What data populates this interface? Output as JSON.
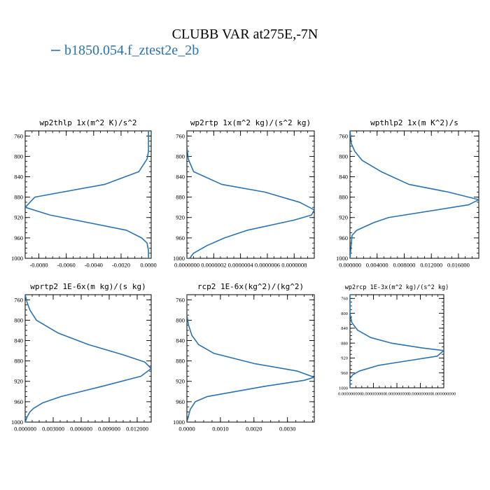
{
  "figure": {
    "title": "CLUBB VAR at275E,-7N",
    "legend": {
      "label": "b1850.054.f_ztest2e_2b",
      "color": "#2a73b2"
    }
  },
  "chart_data": [
    {
      "type": "line",
      "title": "wp2thlp  1x(m^2 K)/s^2",
      "xlim": [
        -0.009,
        0.0002
      ],
      "ylim": [
        1000,
        750
      ],
      "x_ticks": [
        "-0.0080",
        "-0.0060",
        "-0.0040",
        "-0.0020",
        "0.0000"
      ],
      "x_tick_values": [
        -0.008,
        -0.006,
        -0.004,
        -0.002,
        0.0
      ],
      "y_ticks": [
        "760",
        "800",
        "840",
        "880",
        "920",
        "960",
        "1000"
      ],
      "y_tick_values": [
        760,
        800,
        840,
        880,
        920,
        960,
        1000
      ],
      "series": [
        {
          "color": "#2a73b2",
          "x": [
            0.0,
            0.0,
            0.0,
            -0.0001,
            -0.0007,
            -0.0032,
            -0.0083,
            -0.009,
            -0.0072,
            -0.0016,
            -0.0005,
            -0.0001,
            0.0,
            0.0
          ],
          "y": [
            750,
            780,
            790,
            805,
            830,
            855,
            880,
            900,
            915,
            945,
            960,
            970,
            985,
            1000
          ]
        }
      ]
    },
    {
      "type": "line",
      "title": "wp2rtp  1x(m^2 kg)/(s^2 kg)",
      "xlim": [
        0,
        9.5e-07
      ],
      "ylim": [
        1000,
        750
      ],
      "x_ticks": [
        "0.0000000",
        "0.0000002",
        "0.0000004",
        "0.0000006",
        "0.0000008"
      ],
      "x_tick_values": [
        0,
        2e-07,
        4e-07,
        6e-07,
        8e-07
      ],
      "y_ticks": [
        "760",
        "800",
        "840",
        "880",
        "920",
        "960",
        "1000"
      ],
      "y_tick_values": [
        760,
        800,
        840,
        880,
        920,
        960,
        1000
      ],
      "series": [
        {
          "color": "#2a73b2",
          "x": [
            0.0,
            0.0,
            1e-08,
            5e-08,
            2.6e-07,
            5.8e-07,
            8.4e-07,
            9.5e-07,
            9.3e-07,
            8e-07,
            4.5e-07,
            2.8e-07,
            1.5e-07,
            5e-08,
            2e-08,
            0.0
          ],
          "y": [
            750,
            780,
            805,
            830,
            855,
            870,
            890,
            905,
            915,
            925,
            945,
            960,
            975,
            990,
            1000,
            1000
          ]
        }
      ]
    },
    {
      "type": "line",
      "title": "wpthlp2  1x(m K^2)/s",
      "xlim": [
        0,
        0.019
      ],
      "ylim": [
        1000,
        750
      ],
      "x_ticks": [
        "0.000000",
        "0.004000",
        "0.008000",
        "0.012000",
        "0.016000"
      ],
      "x_tick_values": [
        0,
        0.004,
        0.008,
        0.012,
        0.016
      ],
      "y_ticks": [
        "760",
        "800",
        "840",
        "880",
        "920",
        "960",
        "1000"
      ],
      "y_tick_values": [
        760,
        800,
        840,
        880,
        920,
        960,
        1000
      ],
      "series": [
        {
          "color": "#2a73b2",
          "x": [
            0.0,
            0.0002,
            0.0007,
            0.0018,
            0.0046,
            0.0087,
            0.0145,
            0.019,
            0.0175,
            0.0057,
            0.0035,
            0.001,
            0.0003,
            0.0
          ],
          "y": [
            750,
            775,
            790,
            808,
            830,
            855,
            870,
            885,
            895,
            920,
            930,
            945,
            955,
            1000
          ]
        }
      ]
    },
    {
      "type": "line",
      "title": "wprtp2  1E-6x(m kg)/(s kg)",
      "xlim": [
        0,
        0.0135
      ],
      "ylim": [
        1000,
        750
      ],
      "x_ticks": [
        "0.000000",
        "0.003000",
        "0.006000",
        "0.009000",
        "0.012000"
      ],
      "x_tick_values": [
        0,
        0.003,
        0.006,
        0.009,
        0.012
      ],
      "y_ticks": [
        "760",
        "800",
        "840",
        "880",
        "920",
        "960",
        "1000"
      ],
      "y_tick_values": [
        760,
        800,
        840,
        880,
        920,
        960,
        1000
      ],
      "series": [
        {
          "color": "#2a73b2",
          "x": [
            0.0,
            0.0002,
            0.0005,
            0.0012,
            0.0035,
            0.0068,
            0.0105,
            0.0128,
            0.0135,
            0.0124,
            0.0082,
            0.0038,
            0.0019,
            0.0009,
            0.0005,
            0.0002,
            0.0
          ],
          "y": [
            750,
            765,
            780,
            800,
            825,
            848,
            868,
            882,
            895,
            910,
            930,
            950,
            962,
            973,
            980,
            990,
            1000
          ]
        }
      ]
    },
    {
      "type": "line",
      "title": "rcp2  1E-6x(kg^2)/(kg^2)",
      "xlim": [
        0,
        0.0038
      ],
      "ylim": [
        1000,
        750
      ],
      "x_ticks": [
        "0.0000",
        "0.0010",
        "0.0020",
        "0.0030"
      ],
      "x_tick_values": [
        0,
        0.001,
        0.002,
        0.003
      ],
      "y_ticks": [
        "760",
        "800",
        "840",
        "880",
        "920",
        "960",
        "1000"
      ],
      "y_tick_values": [
        760,
        800,
        840,
        880,
        920,
        960,
        1000
      ],
      "series": [
        {
          "color": "#2a73b2",
          "x": [
            0.0,
            0.0,
            5e-05,
            0.00015,
            0.00035,
            0.0008,
            0.002,
            0.0033,
            0.0038,
            0.0035,
            0.0023,
            0.0006,
            0.00025,
            0.0001,
            0.0
          ],
          "y": [
            750,
            790,
            810,
            830,
            848,
            865,
            885,
            900,
            912,
            918,
            930,
            950,
            960,
            975,
            1000
          ]
        }
      ]
    },
    {
      "type": "line",
      "title": "wp2rcp  1E-3x(m^2 kg)/(s^2 kg)",
      "xlim": [
        0,
        1
      ],
      "ylim": [
        1000,
        750
      ],
      "x_ticks": [
        "0.000000000",
        "0.000000000",
        "0.000000000",
        "0.000000000",
        "0.000000000"
      ],
      "x_tick_values": [
        0,
        0.25,
        0.5,
        0.75,
        1
      ],
      "y_ticks": [
        "760",
        "800",
        "840",
        "880",
        "920",
        "960",
        "1000"
      ],
      "y_tick_values": [
        760,
        800,
        840,
        880,
        920,
        960,
        1000
      ],
      "series": [
        {
          "color": "#2a73b2",
          "x": [
            0.0,
            0.0,
            0.02,
            0.08,
            0.22,
            0.44,
            0.77,
            1.0,
            0.93,
            0.55,
            0.3,
            0.1,
            0.03,
            0.0,
            0.0
          ],
          "y": [
            750,
            800,
            825,
            845,
            865,
            880,
            893,
            900,
            915,
            930,
            940,
            955,
            965,
            975,
            1000
          ]
        }
      ]
    }
  ]
}
